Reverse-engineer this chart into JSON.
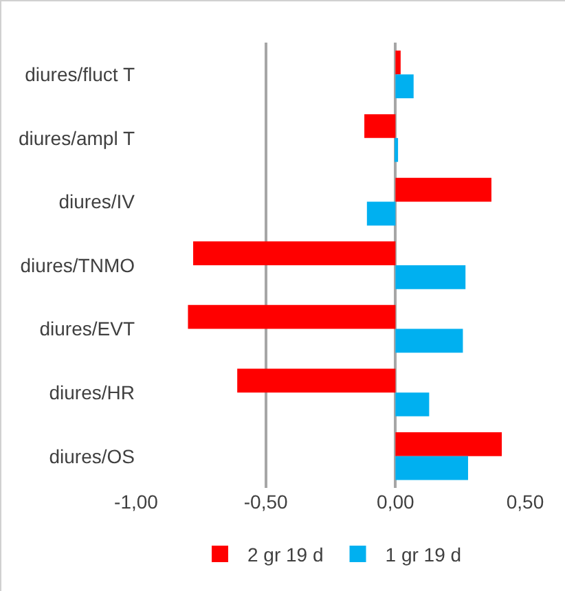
{
  "chart_data": {
    "type": "bar",
    "orientation": "horizontal",
    "categories": [
      "diures/fluct T",
      "diures/ampl T",
      "diures/IV",
      "diures/TNMO",
      "diures/EVT",
      "diures/HR",
      "diures/OS"
    ],
    "series": [
      {
        "name": "2 gr 19 d",
        "color": "#ff0000",
        "values": [
          0.02,
          -0.12,
          0.37,
          -0.78,
          -0.8,
          -0.61,
          0.41
        ]
      },
      {
        "name": "1 gr 19 d",
        "color": "#00b0f0",
        "values": [
          0.07,
          0.01,
          -0.11,
          0.27,
          0.26,
          0.13,
          0.28
        ]
      }
    ],
    "xlim": [
      -1,
      0.5
    ],
    "xticks": [
      {
        "value": -1,
        "label": "-1,00"
      },
      {
        "value": -0.5,
        "label": "-0,50"
      },
      {
        "value": 0,
        "label": "0,00"
      },
      {
        "value": 0.5,
        "label": "0,50"
      }
    ],
    "grid": "x",
    "legend": "bottom"
  }
}
